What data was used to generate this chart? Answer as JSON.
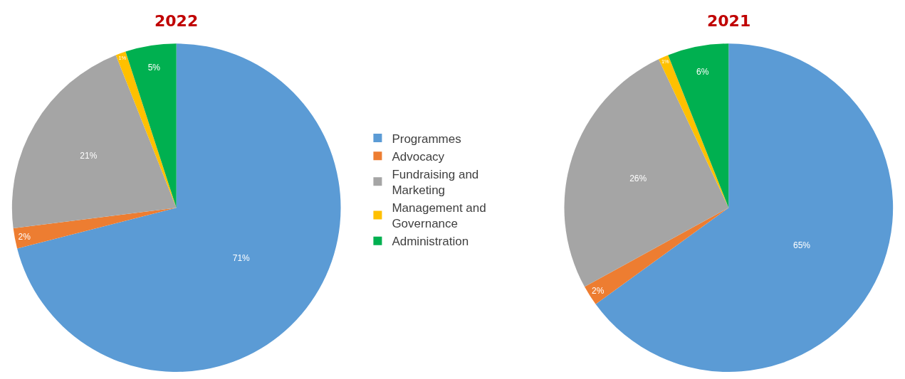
{
  "chart_data": [
    {
      "type": "pie",
      "title": "2022",
      "categories": [
        "Programmes",
        "Advocacy",
        "Fundraising and Marketing",
        "Management and Governance",
        "Administration"
      ],
      "values": [
        71,
        2,
        21,
        1,
        5
      ],
      "value_labels": [
        "71%",
        "2%",
        "21%",
        "1%",
        "5%"
      ],
      "colors": [
        "#5b9bd5",
        "#ed7d31",
        "#a5a5a5",
        "#ffc000",
        "#00b050"
      ],
      "legend": "right"
    },
    {
      "type": "pie",
      "title": "2021",
      "categories": [
        null,
        null,
        null,
        null,
        null
      ],
      "values": [
        65,
        2,
        26,
        1,
        6
      ],
      "value_labels": [
        "65%",
        "2%",
        "26%",
        "1%",
        "6%"
      ],
      "colors": [
        "#5b9bd5",
        "#ed7d31",
        "#a5a5a5",
        "#ffc000",
        "#00b050"
      ]
    }
  ]
}
